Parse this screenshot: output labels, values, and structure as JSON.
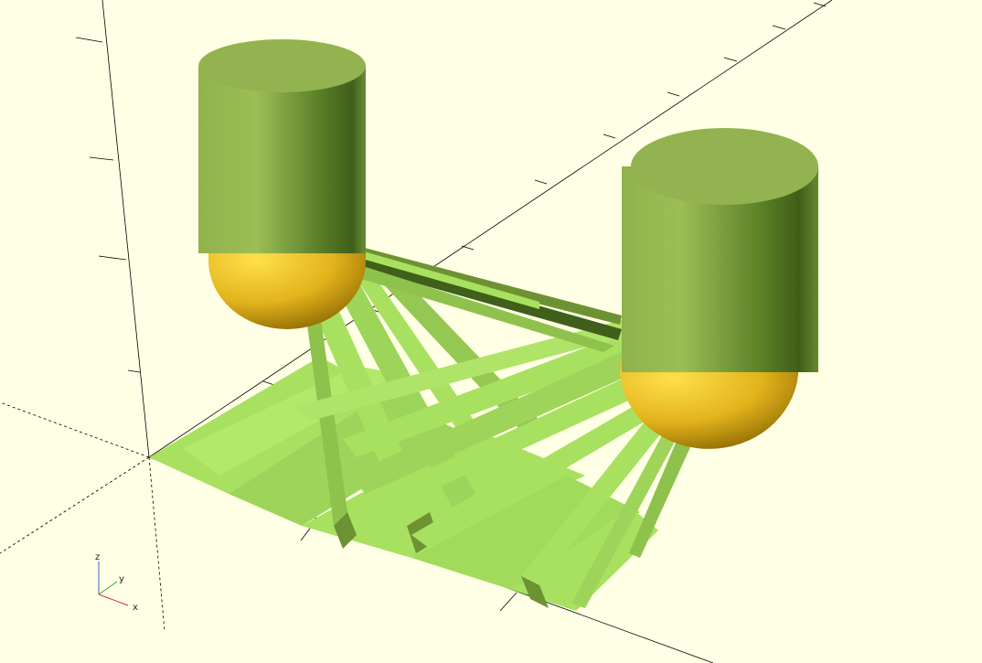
{
  "viewport": {
    "background": "#ffffe5",
    "colors": {
      "cylinder_top": "#93b350",
      "cylinder_light": "#9cbe55",
      "cylinder_dark": "#3f5f1a",
      "cap_light": "#ffe04a",
      "cap_dark": "#9a7500",
      "strut_light": "#a8e060",
      "strut_mid": "#8fc24d",
      "strut_dark": "#6d9232",
      "axis": "#000000"
    },
    "objects": [
      {
        "kind": "cylinder-with-hemisphere-cap",
        "name": "left-pillar"
      },
      {
        "kind": "cylinder-with-hemisphere-cap",
        "name": "right-pillar"
      },
      {
        "kind": "fan-struts",
        "name": "base-lattice"
      }
    ]
  },
  "axis_indicator": {
    "x_label": "x",
    "y_label": "y",
    "z_label": "z",
    "x_color": "#cc3333",
    "y_color": "#33aa33",
    "z_color": "#3366cc"
  }
}
